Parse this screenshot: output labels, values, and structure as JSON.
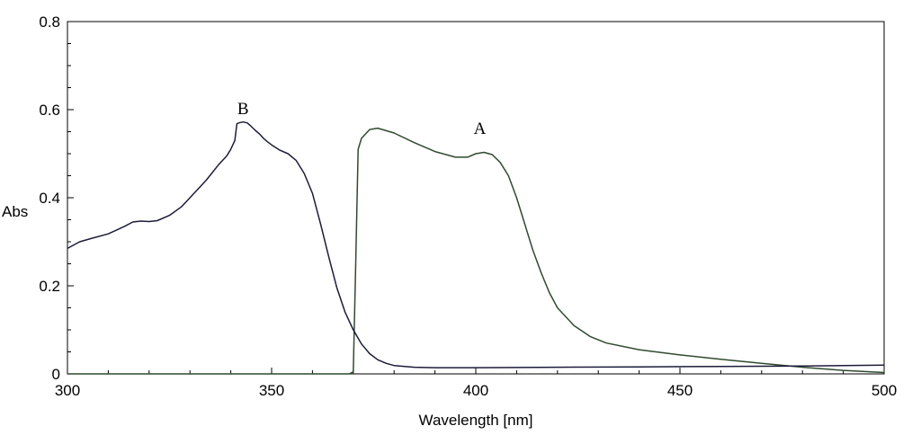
{
  "chart_data": {
    "type": "line",
    "xlabel": "Wavelength [nm]",
    "ylabel": "Abs",
    "xlim": [
      300,
      500
    ],
    "ylim": [
      0,
      0.8
    ],
    "x_ticks": [
      300,
      350,
      400,
      450,
      500
    ],
    "y_ticks": [
      0,
      0.2,
      0.4,
      0.6,
      0.8
    ],
    "x_tick_labels": [
      "300",
      "350",
      "400",
      "450",
      "500"
    ],
    "y_tick_labels": [
      "0",
      "0.2",
      "0.4",
      "0.6",
      "0.8"
    ],
    "grid": false,
    "colors": {
      "A": "#2f4a2f",
      "B": "#1c1c3a"
    },
    "series": [
      {
        "name": "A",
        "label_at": [
          401,
          0.545
        ],
        "points": [
          [
            300,
            0.0
          ],
          [
            369,
            0.0
          ],
          [
            370,
            0.005
          ],
          [
            370.6,
            0.25
          ],
          [
            371.2,
            0.51
          ],
          [
            372,
            0.535
          ],
          [
            374,
            0.555
          ],
          [
            376,
            0.558
          ],
          [
            380,
            0.547
          ],
          [
            385,
            0.525
          ],
          [
            390,
            0.505
          ],
          [
            395,
            0.492
          ],
          [
            398,
            0.492
          ],
          [
            400,
            0.5
          ],
          [
            402,
            0.503
          ],
          [
            404,
            0.498
          ],
          [
            406,
            0.48
          ],
          [
            408,
            0.45
          ],
          [
            410,
            0.4
          ],
          [
            412,
            0.34
          ],
          [
            414,
            0.28
          ],
          [
            416,
            0.23
          ],
          [
            418,
            0.185
          ],
          [
            420,
            0.15
          ],
          [
            424,
            0.11
          ],
          [
            428,
            0.085
          ],
          [
            432,
            0.07
          ],
          [
            440,
            0.055
          ],
          [
            450,
            0.043
          ],
          [
            460,
            0.033
          ],
          [
            470,
            0.024
          ],
          [
            480,
            0.015
          ],
          [
            490,
            0.008
          ],
          [
            500,
            0.003
          ]
        ]
      },
      {
        "name": "B",
        "label_at": [
          343,
          0.59
        ],
        "points": [
          [
            300,
            0.285
          ],
          [
            303,
            0.3
          ],
          [
            306,
            0.308
          ],
          [
            310,
            0.318
          ],
          [
            314,
            0.335
          ],
          [
            316,
            0.345
          ],
          [
            318,
            0.347
          ],
          [
            320,
            0.346
          ],
          [
            322,
            0.348
          ],
          [
            325,
            0.36
          ],
          [
            328,
            0.38
          ],
          [
            331,
            0.41
          ],
          [
            334,
            0.44
          ],
          [
            337,
            0.475
          ],
          [
            339,
            0.495
          ],
          [
            340,
            0.51
          ],
          [
            341,
            0.53
          ],
          [
            341.5,
            0.568
          ],
          [
            342,
            0.57
          ],
          [
            343,
            0.572
          ],
          [
            344,
            0.57
          ],
          [
            345,
            0.562
          ],
          [
            346,
            0.553
          ],
          [
            347,
            0.545
          ],
          [
            348,
            0.535
          ],
          [
            349,
            0.527
          ],
          [
            350,
            0.52
          ],
          [
            352,
            0.508
          ],
          [
            354,
            0.5
          ],
          [
            356,
            0.485
          ],
          [
            358,
            0.455
          ],
          [
            360,
            0.41
          ],
          [
            362,
            0.34
          ],
          [
            364,
            0.265
          ],
          [
            366,
            0.195
          ],
          [
            368,
            0.14
          ],
          [
            370,
            0.1
          ],
          [
            372,
            0.068
          ],
          [
            374,
            0.046
          ],
          [
            376,
            0.032
          ],
          [
            378,
            0.024
          ],
          [
            380,
            0.019
          ],
          [
            385,
            0.015
          ],
          [
            390,
            0.014
          ],
          [
            400,
            0.014
          ],
          [
            420,
            0.015
          ],
          [
            440,
            0.016
          ],
          [
            460,
            0.017
          ],
          [
            480,
            0.018
          ],
          [
            500,
            0.02
          ]
        ]
      }
    ]
  }
}
